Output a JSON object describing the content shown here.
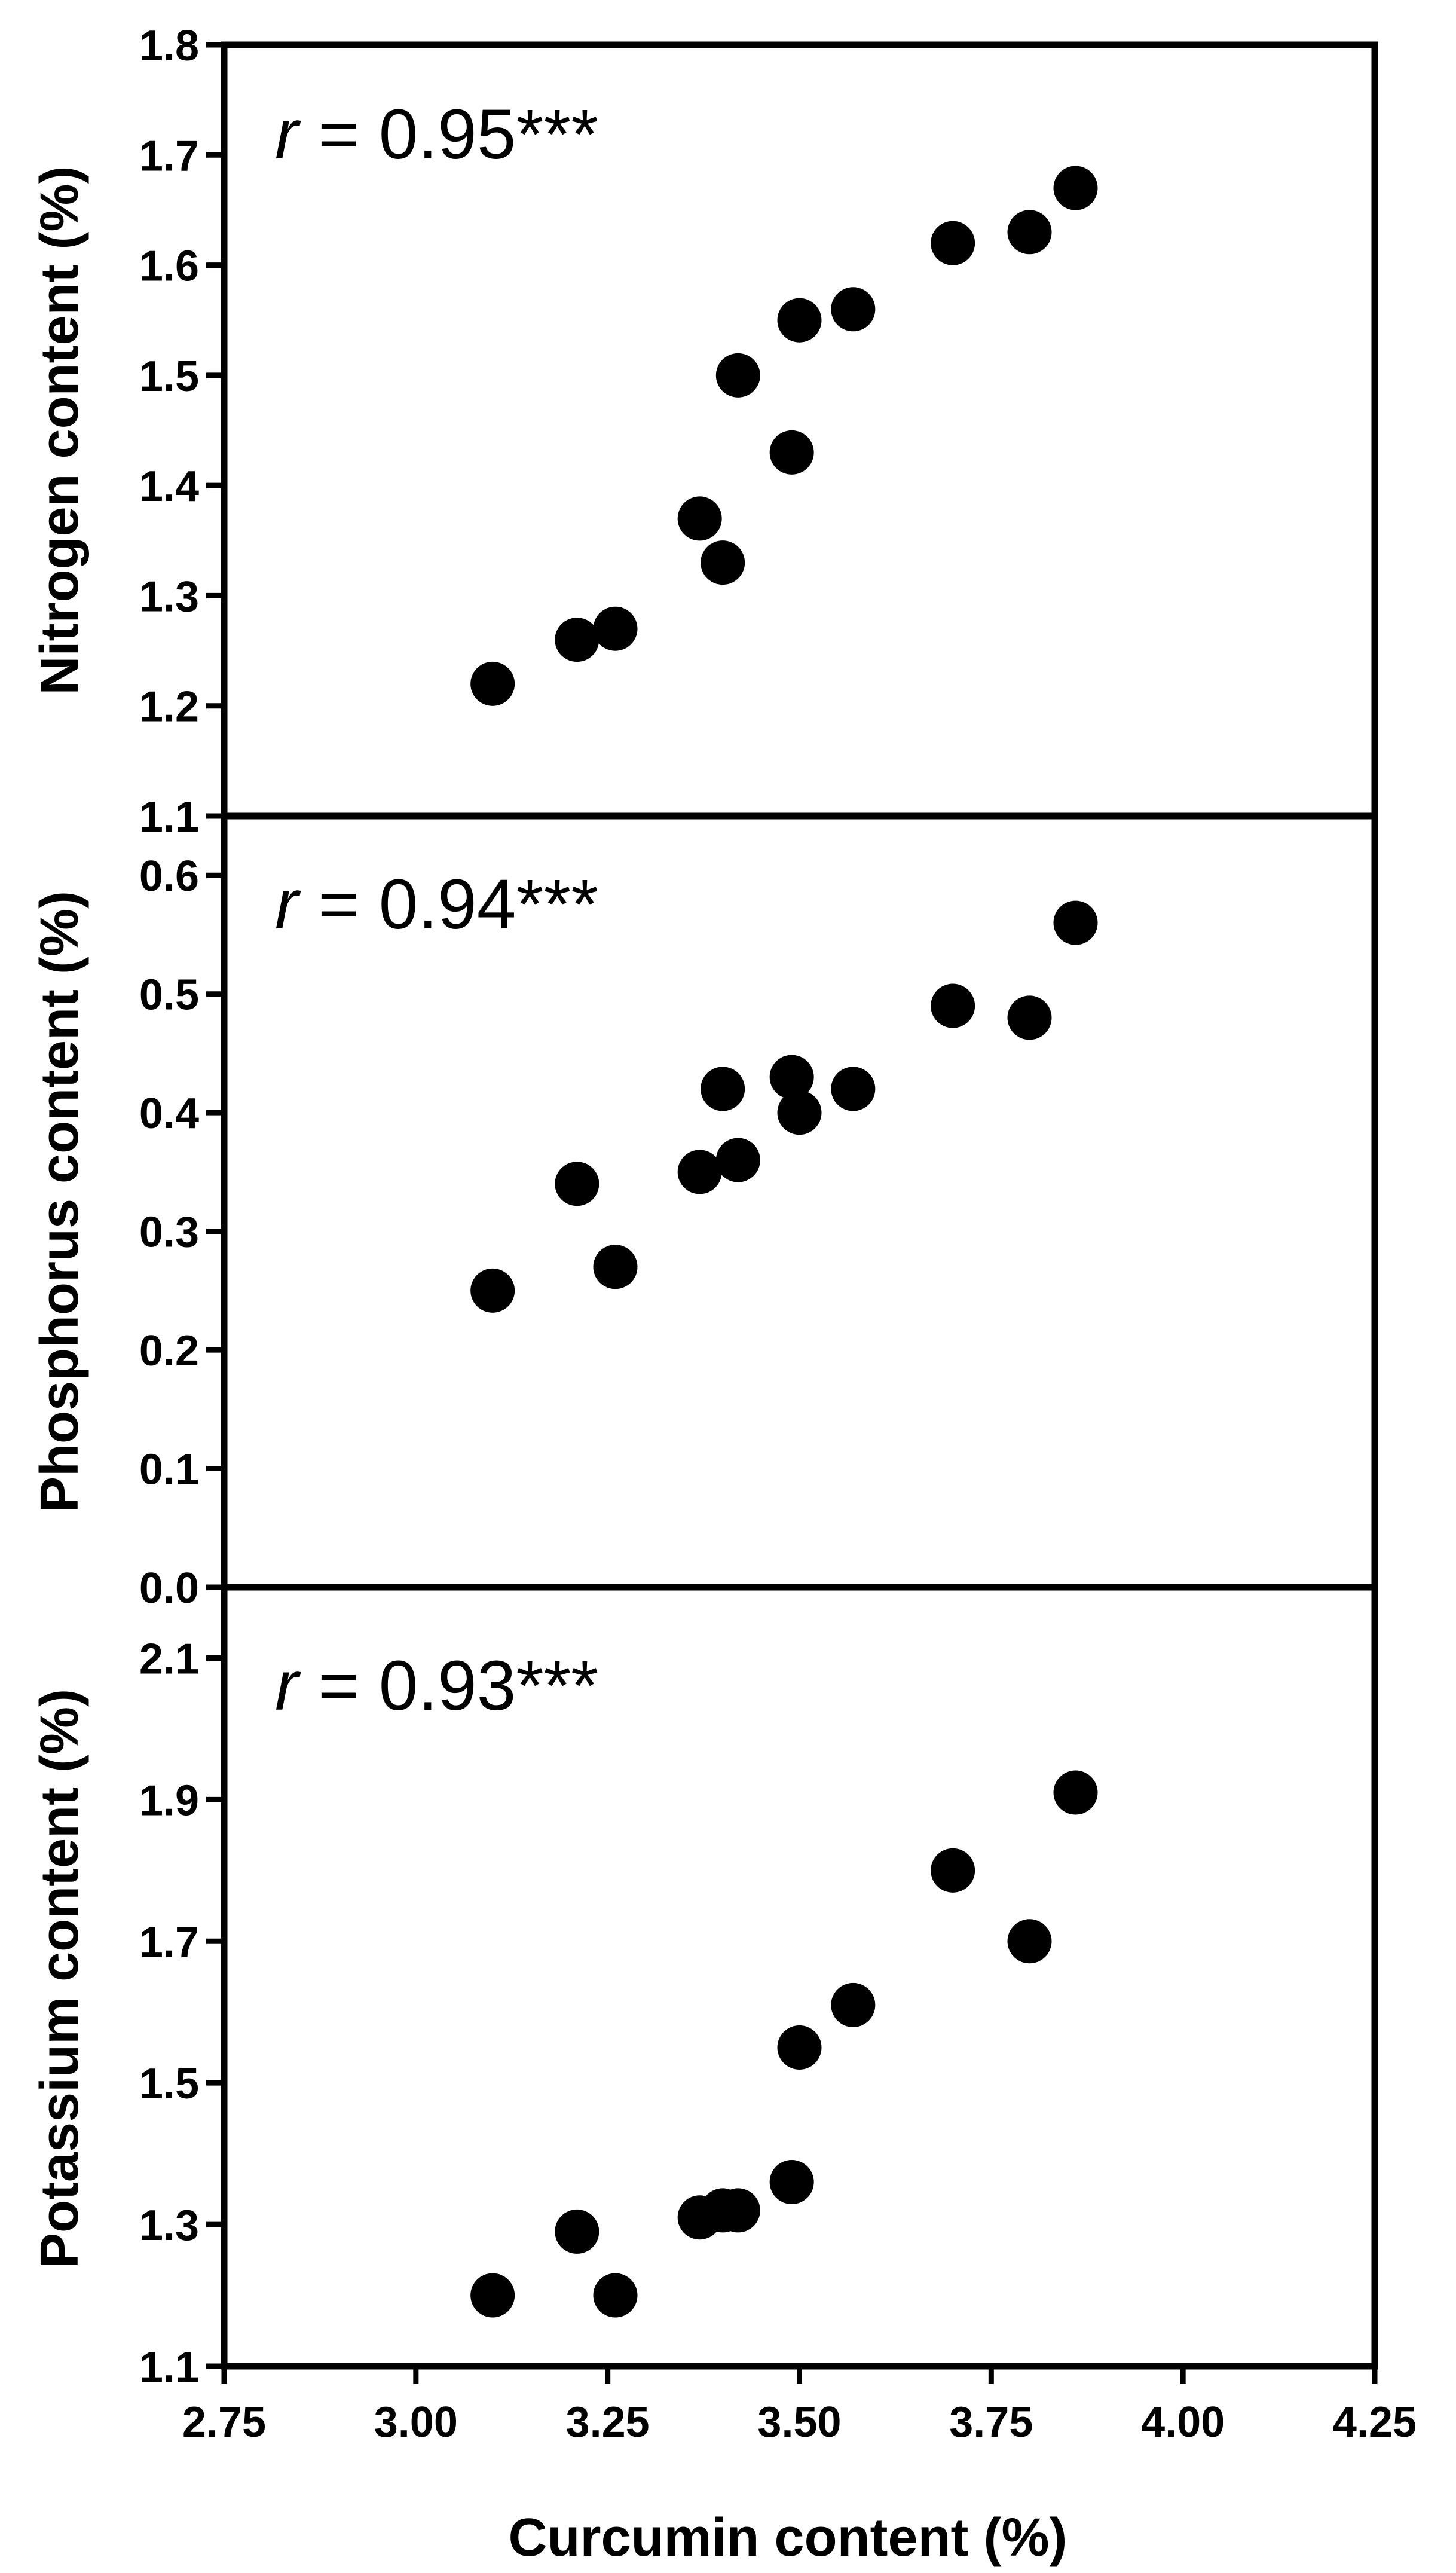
{
  "chart_data": [
    {
      "type": "scatter",
      "ylabel": "Nitrogen content (%)",
      "annotation": {
        "symbol": "r",
        "text": " = 0.95***"
      },
      "ylim": [
        1.1,
        1.8
      ],
      "yticks": [
        "1.1",
        "1.2",
        "1.3",
        "1.4",
        "1.5",
        "1.6",
        "1.7",
        "1.8"
      ],
      "x": [
        3.1,
        3.21,
        3.26,
        3.37,
        3.4,
        3.42,
        3.49,
        3.5,
        3.57,
        3.7,
        3.8,
        3.86
      ],
      "y": [
        1.22,
        1.26,
        1.27,
        1.37,
        1.33,
        1.5,
        1.43,
        1.55,
        1.56,
        1.62,
        1.63,
        1.67
      ]
    },
    {
      "type": "scatter",
      "ylabel": "Phosphorus content (%)",
      "annotation": {
        "symbol": "r",
        "text": " = 0.94***"
      },
      "ylim": [
        0.0,
        0.65
      ],
      "yticks": [
        "0.0",
        "0.1",
        "0.2",
        "0.3",
        "0.4",
        "0.5",
        "0.6"
      ],
      "x": [
        3.1,
        3.21,
        3.26,
        3.37,
        3.4,
        3.42,
        3.49,
        3.5,
        3.57,
        3.7,
        3.8,
        3.86
      ],
      "y": [
        0.25,
        0.34,
        0.27,
        0.35,
        0.42,
        0.36,
        0.43,
        0.4,
        0.42,
        0.49,
        0.48,
        0.56
      ]
    },
    {
      "type": "scatter",
      "ylabel": "Potassium content (%)",
      "annotation": {
        "symbol": "r",
        "text": " = 0.93***"
      },
      "ylim": [
        1.1,
        2.2
      ],
      "yticks": [
        "1.1",
        "1.3",
        "1.5",
        "1.7",
        "1.9",
        "2.1"
      ],
      "x": [
        3.1,
        3.21,
        3.26,
        3.37,
        3.4,
        3.42,
        3.49,
        3.5,
        3.57,
        3.7,
        3.8,
        3.86
      ],
      "y": [
        1.2,
        1.29,
        1.2,
        1.31,
        1.32,
        1.32,
        1.36,
        1.55,
        1.61,
        1.8,
        1.7,
        1.91
      ]
    }
  ],
  "xaxis": {
    "label": "Curcumin content  (%)",
    "xlim": [
      2.75,
      4.25
    ],
    "ticks": [
      "2.75",
      "3.00",
      "3.25",
      "3.50",
      "3.75",
      "4.00",
      "4.25"
    ]
  },
  "colors": {
    "marker": "#000000",
    "axis": "#000000",
    "background": "#ffffff"
  }
}
